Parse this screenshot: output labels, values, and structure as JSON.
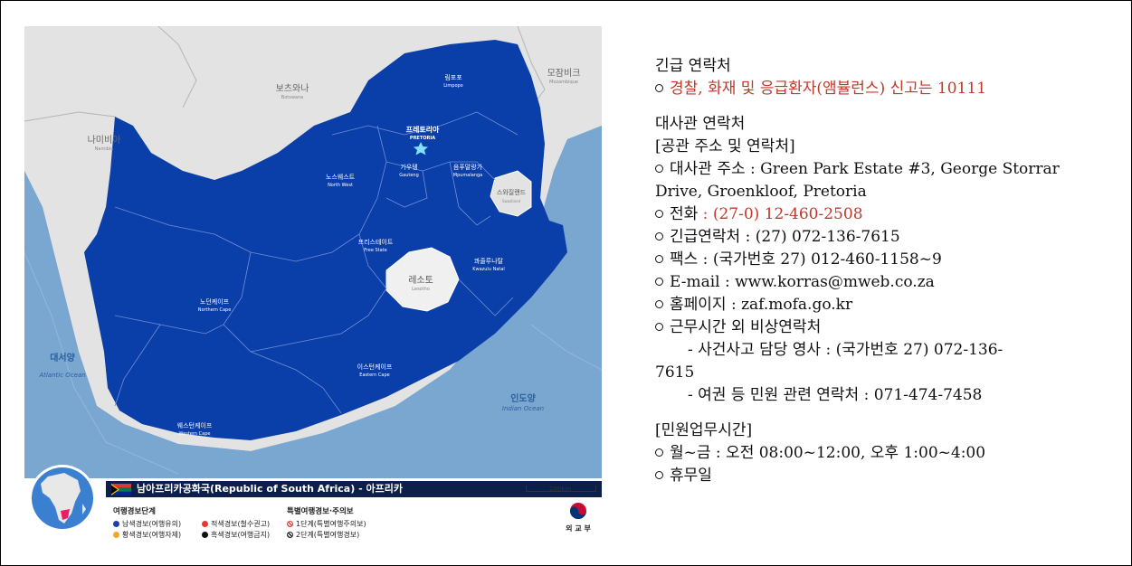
{
  "map": {
    "neighbors": {
      "botswana_ko": "보츠와나",
      "botswana_en": "Botswana",
      "mozambique_ko": "모잠비크",
      "mozambique_en": "Mozambique",
      "namibia_ko": "나미비아",
      "namibia_en": "Namibia",
      "eswatini_ko": "스와질랜드",
      "eswatini_en": "Swaziland",
      "lesotho_ko": "레소토",
      "lesotho_en": "Lesotho"
    },
    "capital_ko": "프레토리아",
    "capital_en": "PRETORIA",
    "provinces": {
      "limpopo_ko": "림포포",
      "limpopo_en": "Limpopo",
      "northwest_ko": "노스웨스트",
      "northwest_en": "North West",
      "gauteng_ko": "가우텡",
      "gauteng_en": "Gauteng",
      "mpumalanga_ko": "음푸말랑가",
      "mpumalanga_en": "Mpumalanga",
      "freestate_ko": "프리스테이트",
      "freestate_en": "Free State",
      "kzn_ko": "콰줄루나탈",
      "kzn_en": "Kwazulu Natal",
      "northerncape_ko": "노던케이프",
      "northerncape_en": "Northern Cape",
      "easterncape_ko": "이스턴케이프",
      "easterncape_en": "Eastern Cape",
      "westerncape_ko": "웨스턴케이프",
      "westerncape_en": "Western Cape"
    },
    "oceans": {
      "atlantic_ko": "대서양",
      "atlantic_en": "Atlantic Ocean",
      "indian_ko": "인도양",
      "indian_en": "Indian Ocean"
    },
    "colors": {
      "country": "#0a3ea8",
      "neighbor": "#e3e3e3",
      "sea": "#7aa7d0",
      "lesotho": "#f0f0f0"
    },
    "country_title": "남아프리카공화국(Republic of South Africa) - 아프리카",
    "scale": "200km",
    "legend": {
      "header_left": "여행경보단계",
      "header_right": "특별여행경보·주의보",
      "blue": "남색경보(여행유의)",
      "yellow": "황색경보(여행자제)",
      "red": "적색경보(철수권고)",
      "black": "흑색경보(여행금지)",
      "special1": "1단계(특별여행주의보)",
      "special2": "2단계(특별여행경보)"
    },
    "ministry": "외 교 부"
  },
  "info": {
    "emergency_title": "긴급 연락처",
    "emergency_line": "경찰, 화재 및 응급환자(앰뷸런스) 신고는 10111",
    "embassy_title": "대사관 연락처",
    "embassy_subtitle": "[공관 주소 및 연락처]",
    "address_line1": "대사관 주소 : Green Park Estate #3, George Storrar",
    "address_line2": "Drive, Groenkloof, Pretoria",
    "phone_label": "전화",
    "phone_value": " : (27-0) 12-460-2508",
    "emergency_contact": "긴급연락처 : (27) 072-136-7615",
    "fax": "팩스 : (국가번호 27) 012-460-1158~9",
    "email": "E-mail : www.korras@mweb.co.za",
    "homepage": "홈페이지 : zaf.mofa.go.kr",
    "after_hours_title": "근무시간 외 비상연락처",
    "consul_line1": "- 사건사고 담당 영사 : (국가번호 27) 072-136-",
    "consul_line2": "7615",
    "passport_line": "- 여권 등 민원 관련 연락처 : 071-474-7458",
    "civil_title": "[민원업무시간]",
    "hours": "월~금 : 오전 08:00~12:00, 오후 1:00~4:00",
    "holiday": "휴무일"
  }
}
